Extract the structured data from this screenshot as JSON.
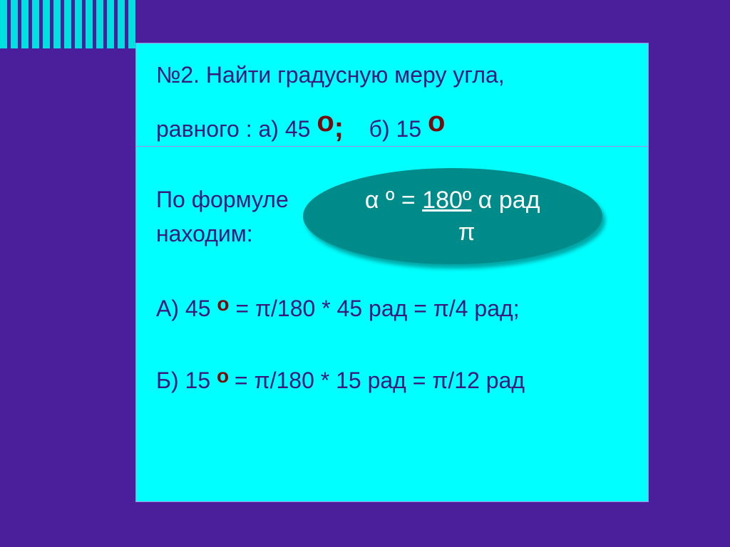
{
  "background_color": "#4b1f9c",
  "panel_color": "#00ffff",
  "text_color": "#3a1880",
  "accent_color": "#7b0a0a",
  "ellipse_color": "#008b8b",
  "ellipse_text_color": "#ffffff",
  "stripes": {
    "count": 13,
    "color": "#00e0e0"
  },
  "problem": {
    "number": "№2.",
    "line1a": "Найти градусную меру угла,",
    "line2_prefix": "равного : а) 45 ",
    "deg1": "о",
    "between": "    б) 15 ",
    "deg2": "о",
    "semicolon": ";"
  },
  "solution": {
    "intro1": "По формуле",
    "intro2": "находим:",
    "formula_top_left": "α º = ",
    "formula_top_right": "180º",
    "formula_top_tail": " α рад",
    "formula_bottom": "π",
    "lineA_label": "А) 45 ",
    "lineA_deg": "о",
    "lineA_rest": " = π/180 * 45 рад = π/4 рад;",
    "lineB_label": "Б) 15 ",
    "lineB_deg": "о ",
    "lineB_rest": "= π/180 * 15 рад = π/12 рад"
  }
}
